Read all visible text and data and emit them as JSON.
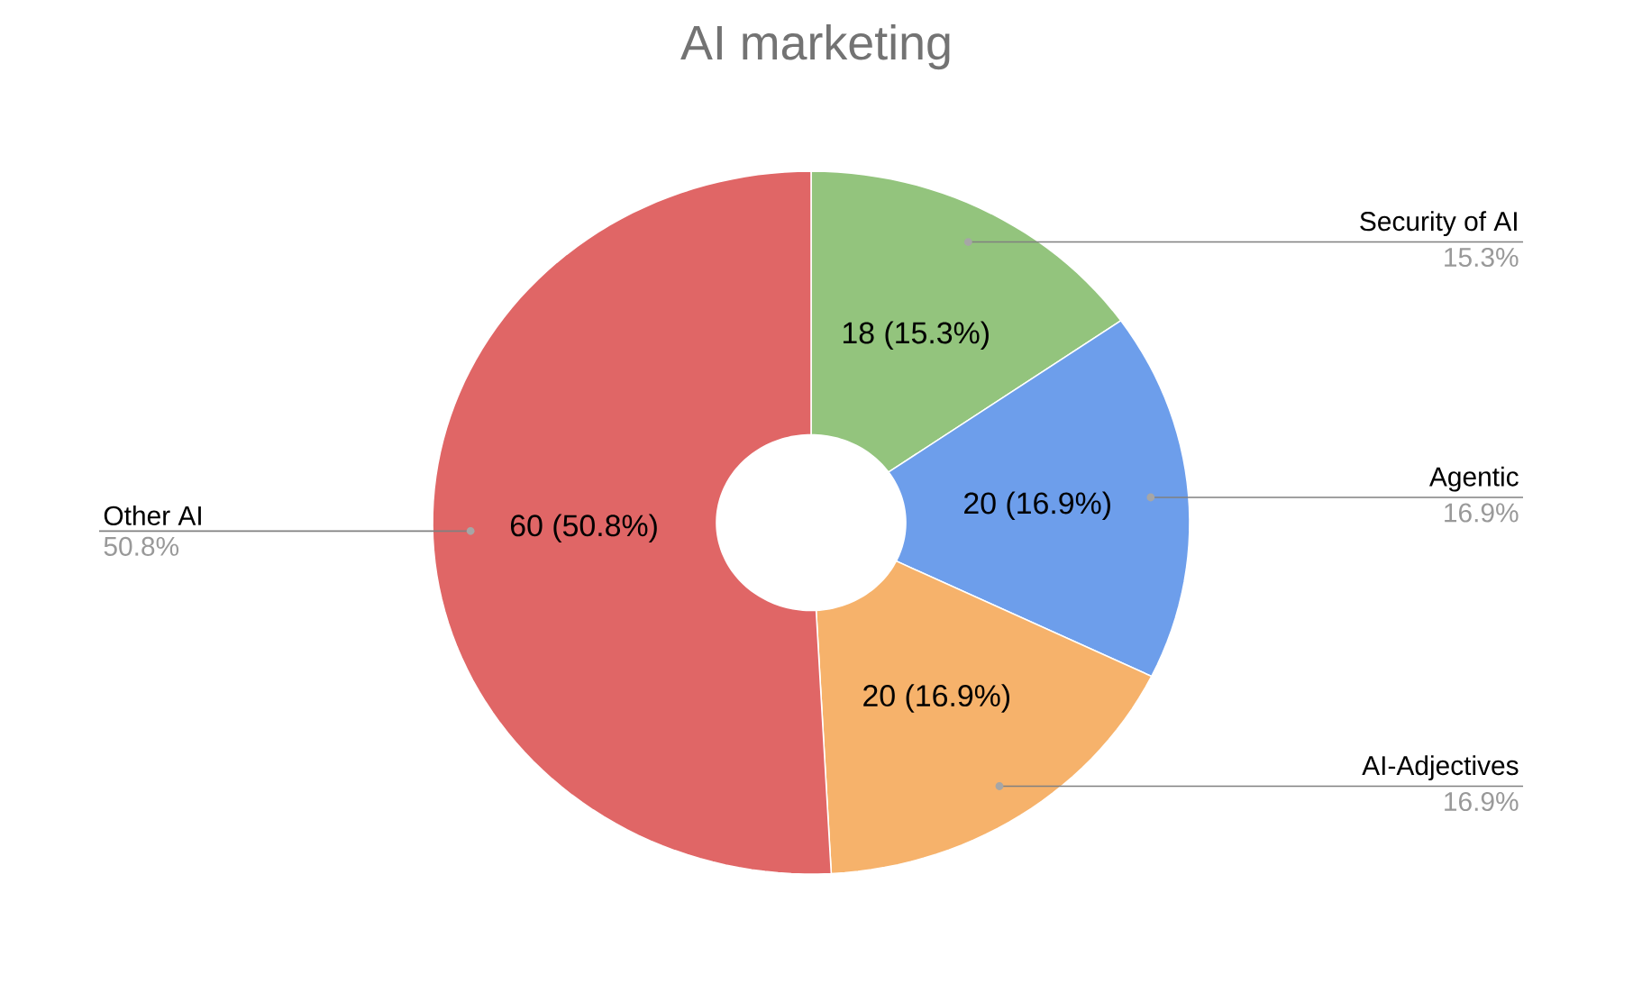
{
  "chart_data": {
    "type": "donut",
    "title": "AI marketing",
    "categories": [
      "Security of AI",
      "Agentic",
      "AI-Adjectives",
      "Other AI"
    ],
    "values": [
      18,
      20,
      20,
      60
    ],
    "colors": [
      "#93c47d",
      "#6d9eeb",
      "#f6b26b",
      "#e06666"
    ],
    "value_labels": [
      "18 (15.3%)",
      "20 (16.9%)",
      "20 (16.9%)",
      "60 (50.8%)"
    ],
    "annotations": [
      {
        "text": "15.3%",
        "x": "Security of AI"
      },
      {
        "text": "16.9%",
        "x": "Agentic"
      },
      {
        "text": "16.9%",
        "x": "AI-Adjectives"
      },
      {
        "text": "50.8%",
        "x": "Other AI"
      }
    ]
  }
}
